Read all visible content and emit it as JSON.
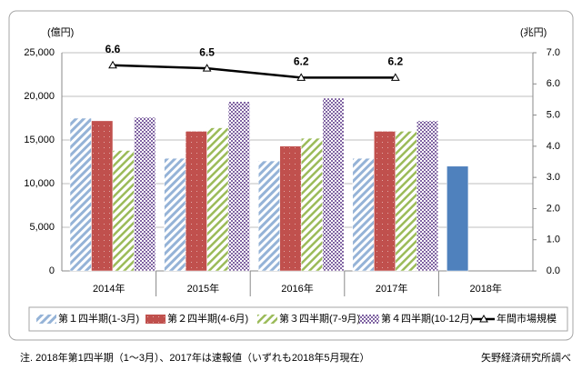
{
  "chart_data": {
    "type": "bar",
    "y_label": "(億円)",
    "y2_label": "(兆円)",
    "categories": [
      "2014年",
      "2015年",
      "2016年",
      "2017年",
      "2018年"
    ],
    "series": [
      {
        "name": "第１四半期(1-3月)",
        "color": "#95b3d7",
        "pattern": "hatch",
        "values": [
          17500,
          12900,
          12600,
          12900,
          12000
        ],
        "special_points": [
          {
            "index": 4,
            "color": "#4f81bd"
          }
        ]
      },
      {
        "name": "第２四半期(4-6月)",
        "color": "#c0504d",
        "pattern": "dots",
        "values": [
          17200,
          16000,
          14300,
          16000,
          null
        ]
      },
      {
        "name": "第３四半期(7-9月)",
        "color": "#9bbb59",
        "pattern": "stripes",
        "values": [
          13800,
          16400,
          15200,
          16000,
          null
        ]
      },
      {
        "name": "第４四半期(10-12月)",
        "color": "#8064a2",
        "pattern": "checker",
        "values": [
          17600,
          19400,
          19800,
          17200,
          null
        ]
      },
      {
        "name": "年間市場規模",
        "color": "#000000",
        "type": "line",
        "axis": "y2",
        "values": [
          6.6,
          6.5,
          6.2,
          6.2,
          null
        ]
      }
    ],
    "ylim": [
      0,
      25000
    ],
    "yticks": [
      0,
      {
        "value": 5000,
        "label": "5,000"
      },
      {
        "value": 10000,
        "label": "10,000"
      },
      {
        "value": 15000,
        "label": "15,000"
      },
      {
        "value": 20000,
        "label": "20,000"
      },
      {
        "value": 25000,
        "label": "25,000"
      }
    ],
    "y2lim": [
      0,
      7
    ],
    "y2ticks": [
      {
        "value": 0,
        "label": "0.0"
      },
      {
        "value": 1,
        "label": "1.0"
      },
      {
        "value": 2,
        "label": "2.0"
      },
      {
        "value": 3,
        "label": "3.0"
      },
      {
        "value": 4,
        "label": "4.0"
      },
      {
        "value": 5,
        "label": "5.0"
      },
      {
        "value": 6,
        "label": "6.0"
      },
      {
        "value": 7,
        "label": "7.0"
      }
    ],
    "grid": true,
    "legend": "bottom",
    "note": "注. 2018年第1四半期（1～3月）、2017年は速報値（いずれも2018年5月現在）",
    "source": "矢野経済研究所調べ"
  }
}
